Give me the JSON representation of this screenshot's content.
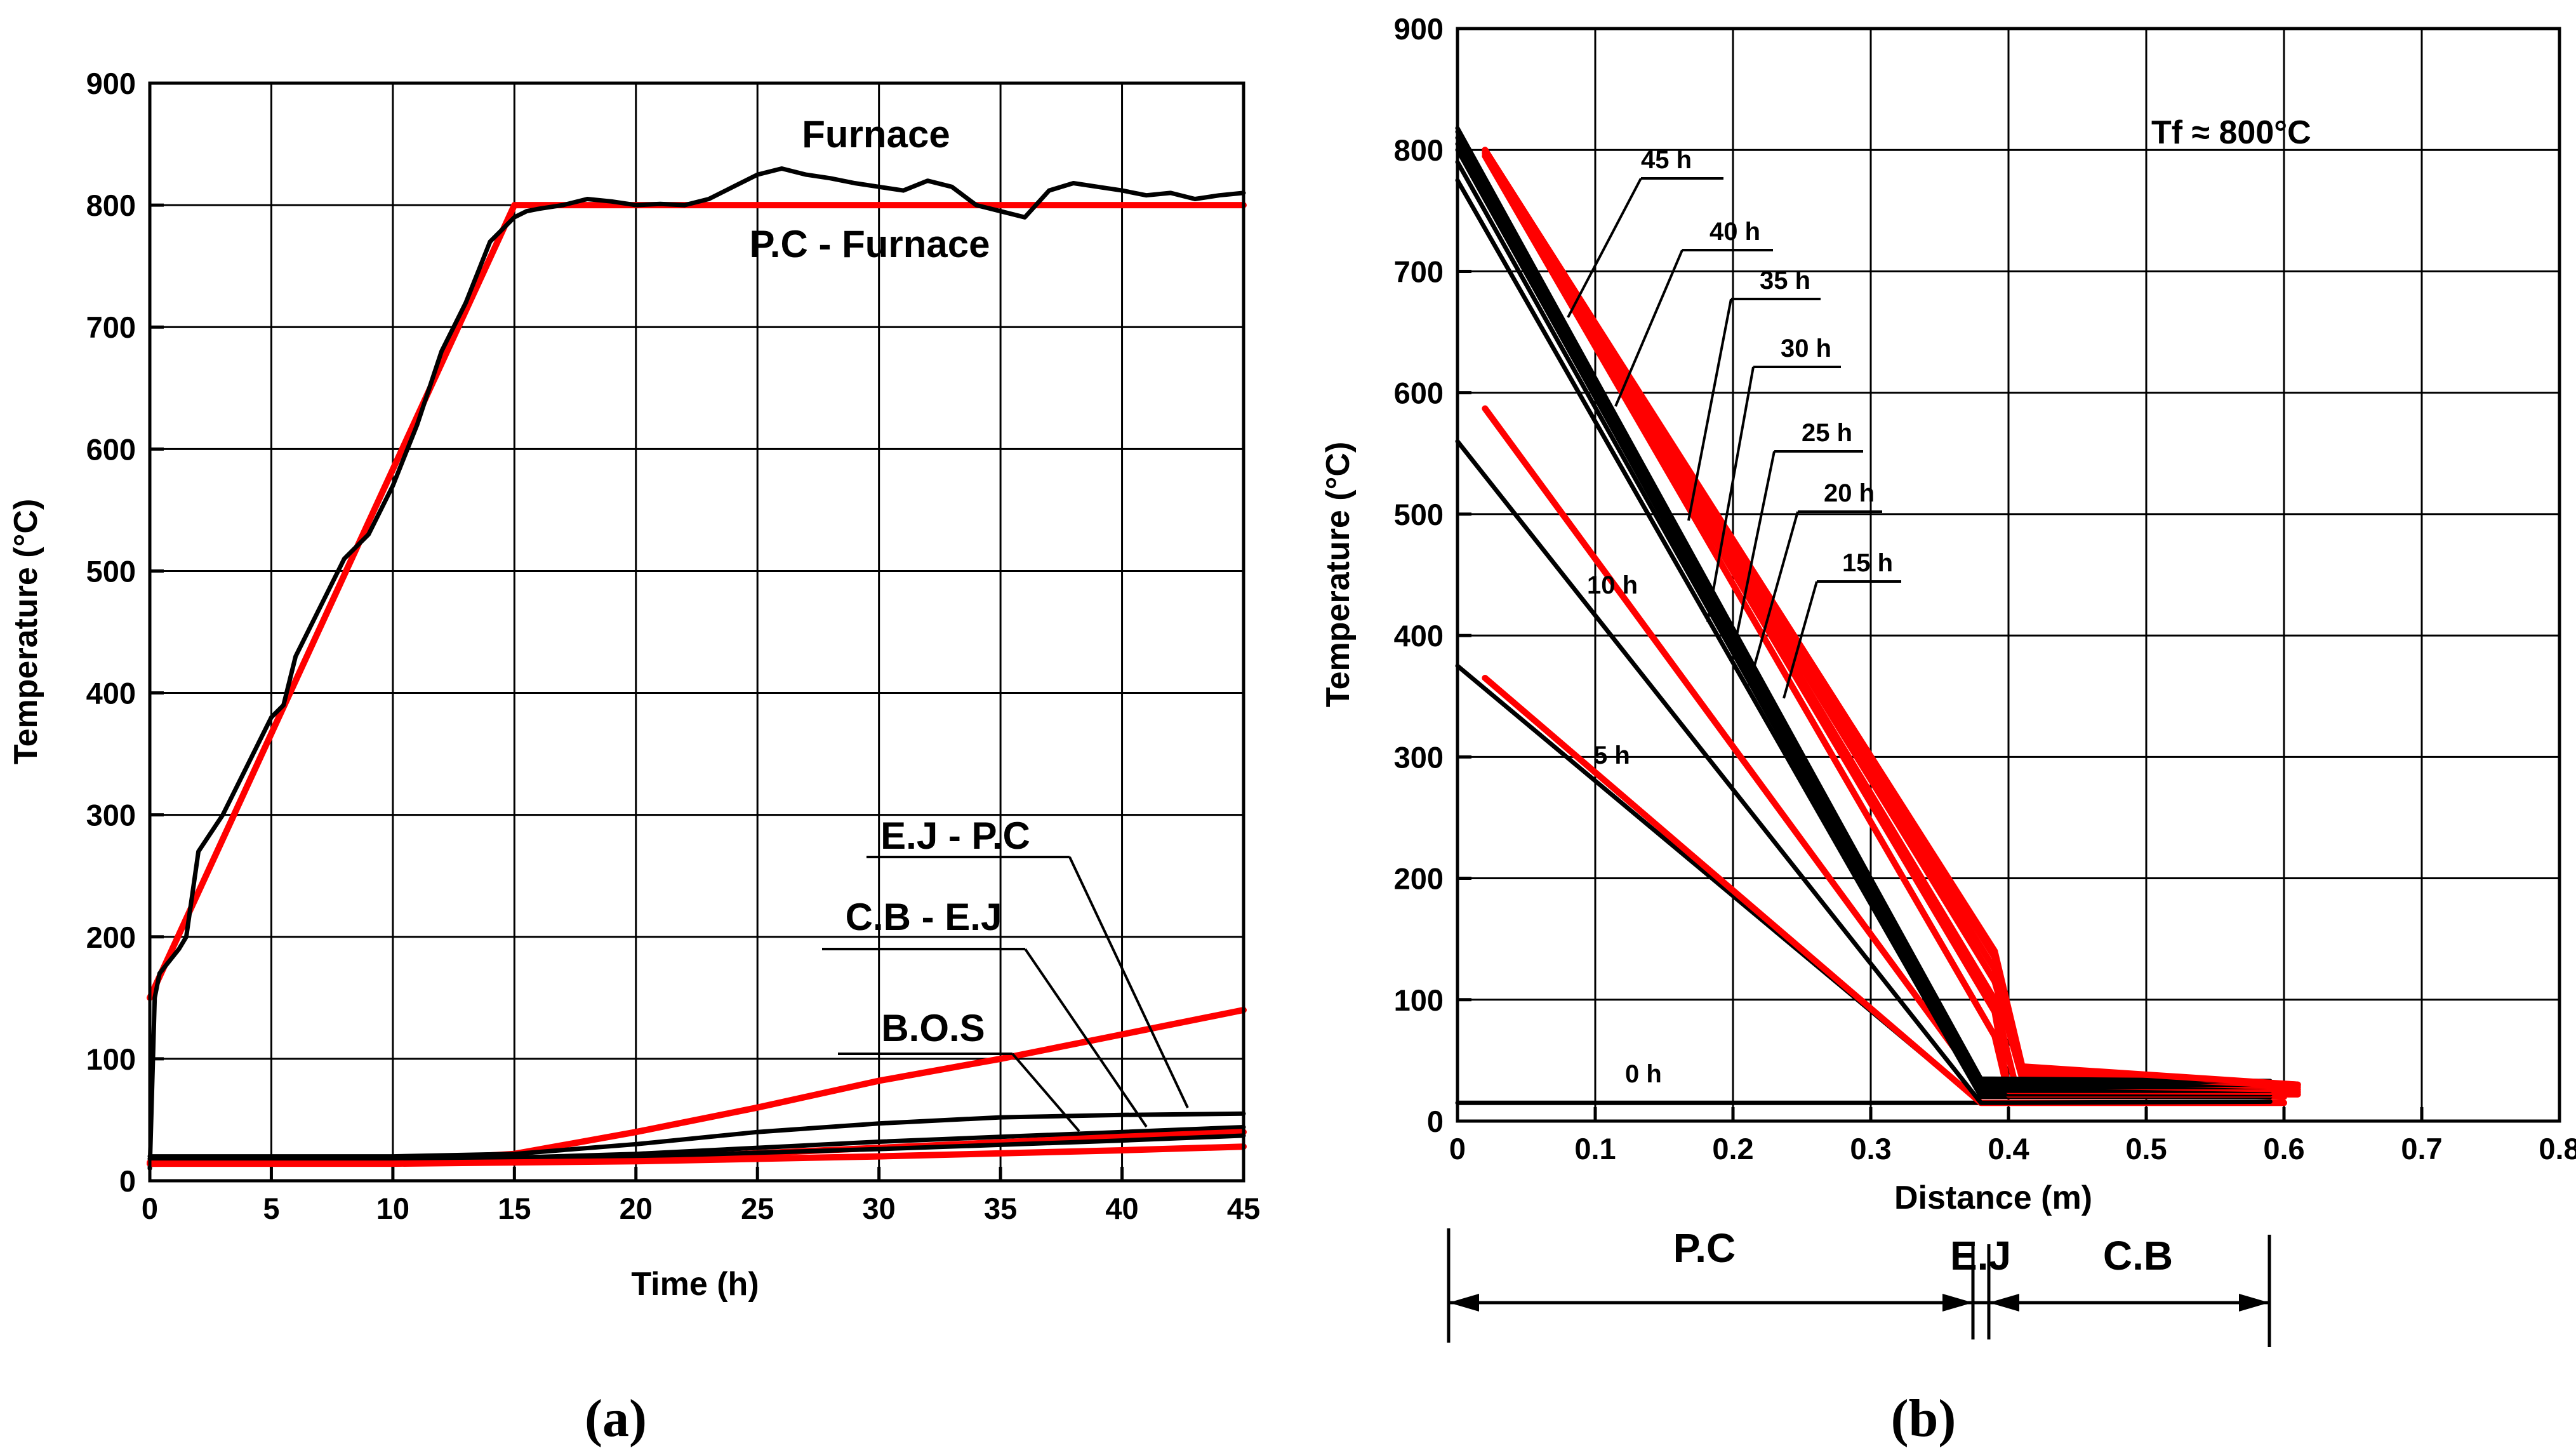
{
  "colors": {
    "red": "#ff0000",
    "black": "#000000"
  },
  "chart_data": [
    {
      "id": "a",
      "type": "line",
      "caption": "(a)",
      "xlabel": "Time (h)",
      "ylabel": "Temperature (°C)",
      "xlim": [
        0,
        45
      ],
      "ylim": [
        0,
        900
      ],
      "xticks": [
        0,
        5,
        10,
        15,
        20,
        25,
        30,
        35,
        40,
        45
      ],
      "yticks": [
        0,
        100,
        200,
        300,
        400,
        500,
        600,
        700,
        800,
        900
      ],
      "grid": true,
      "series": [
        {
          "name": "P.C - Furnace",
          "color": "#ff0000",
          "x": [
            0,
            15,
            45
          ],
          "y": [
            150,
            800,
            800
          ]
        },
        {
          "name": "Furnace",
          "color": "#000000",
          "x": [
            0,
            0.2,
            0.4,
            0.8,
            1.2,
            1.5,
            2,
            3,
            4,
            5,
            5.5,
            6,
            7,
            8,
            9,
            10,
            11,
            12,
            13,
            14,
            15,
            15.5,
            16,
            17,
            18,
            19,
            20,
            21,
            22,
            23,
            24,
            25,
            26,
            27,
            28,
            29,
            30,
            31,
            32,
            33,
            34,
            35,
            36,
            37,
            38,
            39,
            40,
            41,
            42,
            43,
            44,
            45
          ],
          "y": [
            10,
            150,
            170,
            180,
            190,
            200,
            270,
            300,
            340,
            380,
            390,
            430,
            470,
            510,
            530,
            570,
            620,
            680,
            720,
            770,
            790,
            795,
            797,
            800,
            805,
            803,
            800,
            801,
            800,
            805,
            815,
            825,
            830,
            825,
            822,
            818,
            815,
            812,
            820,
            815,
            800,
            795,
            790,
            812,
            818,
            815,
            812,
            808,
            810,
            805,
            808,
            810
          ]
        },
        {
          "name": "E.J - P.C",
          "color": "#ff0000",
          "x": [
            0,
            5,
            10,
            15,
            20,
            25,
            30,
            35,
            40,
            45
          ],
          "y": [
            15,
            15,
            16,
            22,
            40,
            60,
            82,
            100,
            120,
            140
          ]
        },
        {
          "name": "E.J - P.C",
          "color": "#000000",
          "x": [
            0,
            10,
            15,
            20,
            25,
            30,
            35,
            40,
            45
          ],
          "y": [
            20,
            20,
            22,
            30,
            40,
            47,
            52,
            54,
            55
          ]
        },
        {
          "name": "C.B - E.J",
          "color": "#000000",
          "x": [
            0,
            10,
            15,
            20,
            25,
            30,
            35,
            40,
            45
          ],
          "y": [
            18,
            18,
            19,
            22,
            27,
            32,
            36,
            40,
            44
          ]
        },
        {
          "name": "C.B - E.J",
          "color": "#ff0000",
          "x": [
            0,
            10,
            20,
            30,
            40,
            45
          ],
          "y": [
            14,
            15,
            18,
            27,
            36,
            40
          ]
        },
        {
          "name": "B.O.S",
          "color": "#000000",
          "x": [
            0,
            10,
            20,
            30,
            40,
            45
          ],
          "y": [
            18,
            18,
            20,
            26,
            33,
            37
          ]
        },
        {
          "name": "B.O.S",
          "color": "#ff0000",
          "x": [
            0,
            10,
            20,
            30,
            40,
            45
          ],
          "y": [
            14,
            14,
            16,
            20,
            25,
            28
          ]
        }
      ],
      "annotations": {
        "furnace": "Furnace",
        "pc_furnace": "P.C - Furnace",
        "ej_pc": "E.J - P.C",
        "cb_ej": "C.B - E.J",
        "bos": "B.O.S"
      }
    },
    {
      "id": "b",
      "type": "line",
      "caption": "(b)",
      "xlabel": "Distance (m)",
      "ylabel": "Temperature (°C)",
      "xlim": [
        0,
        0.8
      ],
      "ylim": [
        0,
        900
      ],
      "xticks": [
        0,
        0.1,
        0.2,
        0.3,
        0.4,
        0.5,
        0.6,
        0.7,
        0.8
      ],
      "xtick_labels": [
        "0",
        "0.1",
        "0.2",
        "0.3",
        "0.4",
        "0.5",
        "0.6",
        "0.7",
        "0.8"
      ],
      "yticks": [
        0,
        100,
        200,
        300,
        400,
        500,
        600,
        700,
        800,
        900
      ],
      "grid": true,
      "furnace_temperature": "Tf ≈ 800°C",
      "series": [
        {
          "name": "0 h",
          "color": "#000000",
          "x": [
            0,
            0.38,
            0.59
          ],
          "y": [
            15,
            15,
            15
          ]
        },
        {
          "name": "5 h",
          "color": "#000000",
          "x": [
            0,
            0.38,
            0.59
          ],
          "y": [
            375,
            15,
            15
          ]
        },
        {
          "name": "5 h",
          "color": "#ff0000",
          "x": [
            0.02,
            0.38,
            0.6
          ],
          "y": [
            365,
            15,
            15
          ]
        },
        {
          "name": "10 h",
          "color": "#000000",
          "x": [
            0,
            0.38,
            0.59
          ],
          "y": [
            560,
            15,
            16
          ]
        },
        {
          "name": "10 h",
          "color": "#ff0000",
          "x": [
            0.02,
            0.38,
            0.6
          ],
          "y": [
            587,
            30,
            20
          ]
        },
        {
          "name": "15 h",
          "color": "#000000",
          "x": [
            0,
            0.38,
            0.59
          ],
          "y": [
            775,
            20,
            20
          ]
        },
        {
          "name": "15 h",
          "color": "#ff0000",
          "x": [
            0.02,
            0.39,
            0.4,
            0.61
          ],
          "y": [
            795,
            70,
            22,
            22
          ]
        },
        {
          "name": "20 h",
          "color": "#000000",
          "x": [
            0,
            0.38,
            0.59
          ],
          "y": [
            790,
            22,
            22
          ]
        },
        {
          "name": "20 h",
          "color": "#ff0000",
          "x": [
            0.02,
            0.39,
            0.4,
            0.61
          ],
          "y": [
            797,
            90,
            25,
            24
          ]
        },
        {
          "name": "25 h",
          "color": "#000000",
          "x": [
            0,
            0.38,
            0.59
          ],
          "y": [
            800,
            25,
            25
          ]
        },
        {
          "name": "25 h",
          "color": "#ff0000",
          "x": [
            0.02,
            0.39,
            0.405,
            0.61
          ],
          "y": [
            798,
            100,
            30,
            26
          ]
        },
        {
          "name": "30 h",
          "color": "#000000",
          "x": [
            0,
            0.38,
            0.59
          ],
          "y": [
            805,
            28,
            28
          ]
        },
        {
          "name": "30 h",
          "color": "#ff0000",
          "x": [
            0.02,
            0.39,
            0.41,
            0.61
          ],
          "y": [
            799,
            115,
            35,
            28
          ]
        },
        {
          "name": "35 h",
          "color": "#000000",
          "x": [
            0,
            0.38,
            0.59
          ],
          "y": [
            810,
            30,
            30
          ]
        },
        {
          "name": "35 h",
          "color": "#ff0000",
          "x": [
            0.02,
            0.39,
            0.41,
            0.61
          ],
          "y": [
            800,
            125,
            40,
            29
          ]
        },
        {
          "name": "40 h",
          "color": "#000000",
          "x": [
            0,
            0.38,
            0.59
          ],
          "y": [
            815,
            33,
            32
          ]
        },
        {
          "name": "40 h",
          "color": "#ff0000",
          "x": [
            0.02,
            0.39,
            0.41,
            0.61
          ],
          "y": [
            800,
            135,
            42,
            30
          ]
        },
        {
          "name": "45 h",
          "color": "#000000",
          "x": [
            0,
            0.38,
            0.59
          ],
          "y": [
            818,
            35,
            33
          ]
        },
        {
          "name": "45 h",
          "color": "#ff0000",
          "x": [
            0.02,
            0.39,
            0.41,
            0.61
          ],
          "y": [
            800,
            140,
            45,
            30
          ]
        }
      ],
      "time_labels": [
        "45 h",
        "40 h",
        "35 h",
        "30 h",
        "25 h",
        "20 h",
        "15 h",
        "10 h",
        "5 h",
        "0 h"
      ],
      "zones": [
        {
          "label": "P.C",
          "from": 0,
          "to": 0.38
        },
        {
          "label": "E.J",
          "from": 0.38,
          "to": 0.39
        },
        {
          "label": "C.B",
          "from": 0.39,
          "to": 0.59
        }
      ]
    }
  ]
}
